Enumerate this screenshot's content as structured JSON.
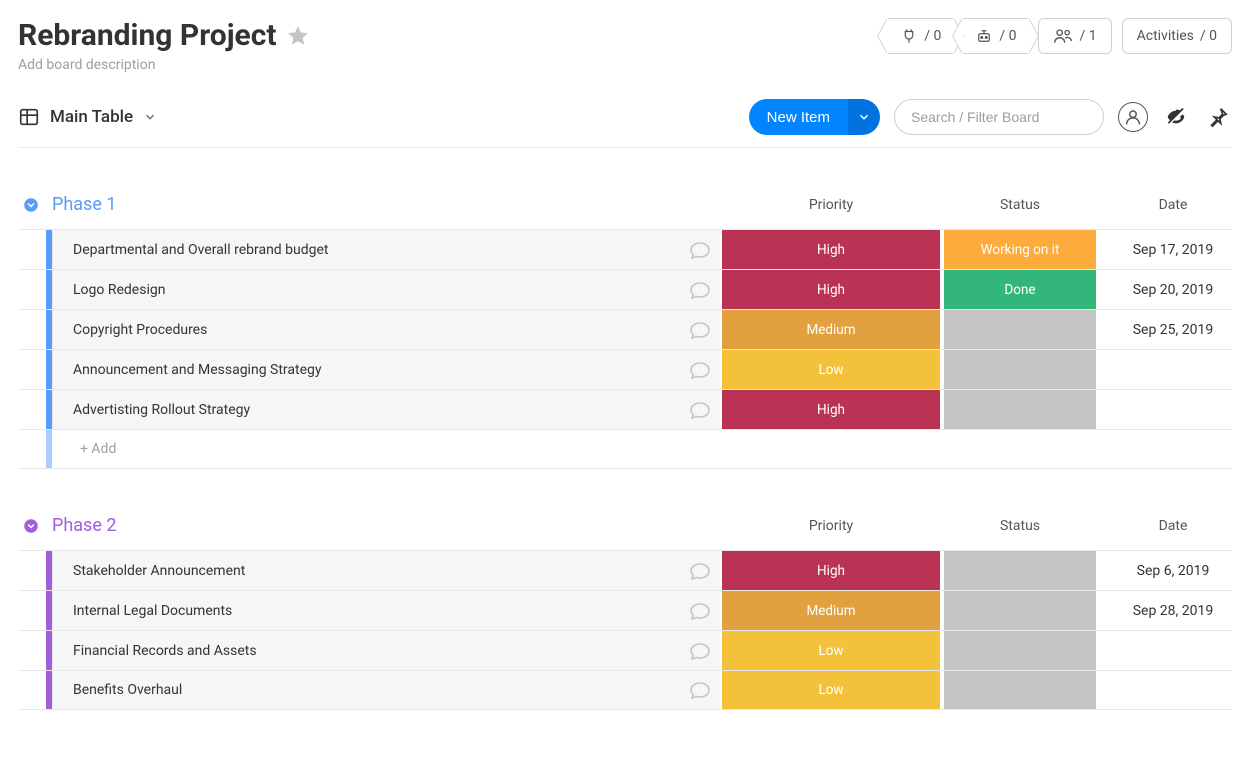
{
  "board": {
    "title": "Rebranding Project",
    "description_placeholder": "Add board description"
  },
  "header_stats": {
    "integrations_count": "/ 0",
    "automations_count": "/ 0",
    "members_count": "/ 1",
    "activities_label": "Activities",
    "activities_count": "/ 0"
  },
  "view": {
    "name": "Main Table",
    "new_item_label": "New Item",
    "search_placeholder": "Search / Filter Board"
  },
  "columns": {
    "priority": "Priority",
    "status": "Status",
    "date": "Date"
  },
  "colors": {
    "group1_accent": "#579bfc",
    "group2_accent": "#a25ddc",
    "priority_high_bg": "#bb3354",
    "priority_medium_bg": "#e2a03f",
    "priority_low_bg": "#f3c13a",
    "status_working_bg": "#fdab3d",
    "status_done_bg": "#33b679",
    "status_empty_bg": "#c4c4c4",
    "row_bg": "#f6f6f6",
    "new_item_btn": "#0085ff",
    "new_item_dropdown": "#0073de"
  },
  "groups": [
    {
      "id": "phase1",
      "title": "Phase 1",
      "accent_key": "group1_accent",
      "add_label": "+ Add",
      "items": [
        {
          "name": "Departmental and Overall rebrand budget",
          "priority": "High",
          "priority_color_key": "priority_high_bg",
          "status": "Working on it",
          "status_color_key": "status_working_bg",
          "date": "Sep 17, 2019"
        },
        {
          "name": "Logo Redesign",
          "priority": "High",
          "priority_color_key": "priority_high_bg",
          "status": "Done",
          "status_color_key": "status_done_bg",
          "date": "Sep 20, 2019"
        },
        {
          "name": "Copyright Procedures",
          "priority": "Medium",
          "priority_color_key": "priority_medium_bg",
          "status": "",
          "status_color_key": "status_empty_bg",
          "date": "Sep 25, 2019"
        },
        {
          "name": "Announcement and Messaging Strategy",
          "priority": "Low",
          "priority_color_key": "priority_low_bg",
          "status": "",
          "status_color_key": "status_empty_bg",
          "date": ""
        },
        {
          "name": "Advertisting Rollout Strategy",
          "priority": "High",
          "priority_color_key": "priority_high_bg",
          "status": "",
          "status_color_key": "status_empty_bg",
          "date": ""
        }
      ]
    },
    {
      "id": "phase2",
      "title": "Phase 2",
      "accent_key": "group2_accent",
      "add_label": "+ Add",
      "items": [
        {
          "name": "Stakeholder Announcement",
          "priority": "High",
          "priority_color_key": "priority_high_bg",
          "status": "",
          "status_color_key": "status_empty_bg",
          "date": "Sep 6, 2019"
        },
        {
          "name": "Internal Legal Documents",
          "priority": "Medium",
          "priority_color_key": "priority_medium_bg",
          "status": "",
          "status_color_key": "status_empty_bg",
          "date": "Sep 28, 2019"
        },
        {
          "name": "Financial Records and Assets",
          "priority": "Low",
          "priority_color_key": "priority_low_bg",
          "status": "",
          "status_color_key": "status_empty_bg",
          "date": ""
        },
        {
          "name": "Benefits Overhaul",
          "priority": "Low",
          "priority_color_key": "priority_low_bg",
          "status": "",
          "status_color_key": "status_empty_bg",
          "date": ""
        }
      ]
    }
  ]
}
